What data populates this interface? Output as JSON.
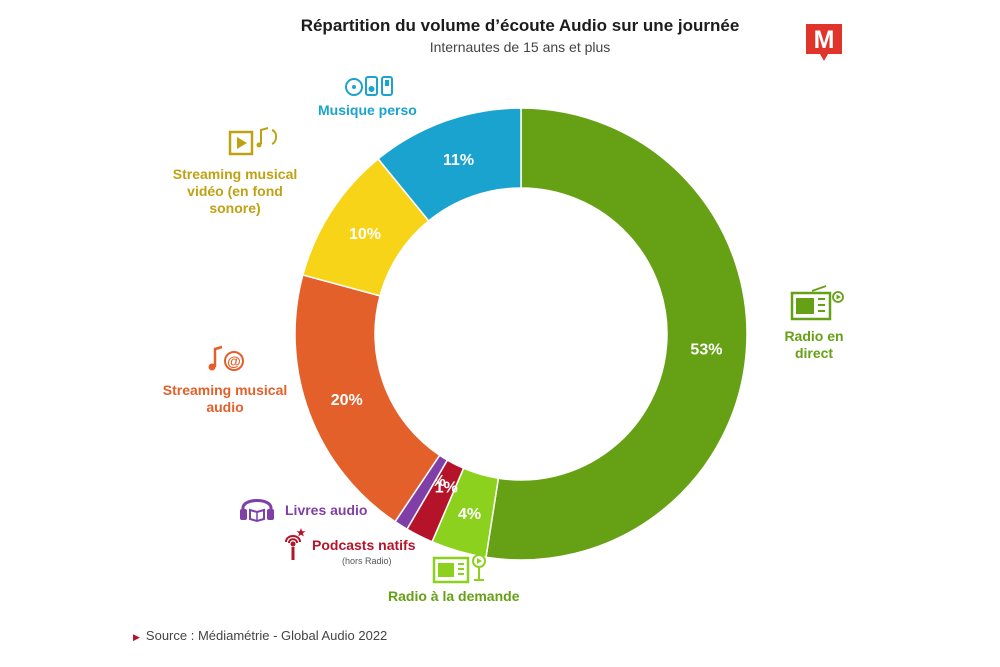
{
  "header": {
    "title": "Répartition du volume d’écoute Audio sur une journée",
    "subtitle": "Internautes de 15 ans et plus"
  },
  "logo": {
    "letter": "M",
    "color": "#e0342b"
  },
  "chart_data": {
    "type": "pie",
    "donut": true,
    "title": "Répartition du volume d’écoute Audio sur une journée",
    "subtitle": "Internautes de 15 ans et plus",
    "unit": "%",
    "slices": [
      {
        "label": "Radio en direct",
        "value": 53,
        "display": "53%",
        "color": "#66a014",
        "icon": "radio-icon"
      },
      {
        "label": "Radio à la demande",
        "value": 4,
        "display": "4%",
        "color": "#8cd11e",
        "icon": "radio-replay-icon"
      },
      {
        "label": "Podcasts natifs",
        "sublabel": "(hors Radio)",
        "value": 2,
        "display": "2%",
        "color": "#b5132a",
        "icon": "podcast-mic-icon"
      },
      {
        "label": "Livres audio",
        "value": 1,
        "display": "1%",
        "color": "#7f3fa6",
        "icon": "headphones-book-icon"
      },
      {
        "label": "Streaming musical audio",
        "value": 20,
        "display": "20%",
        "color": "#e3602a",
        "icon": "music-note-icon"
      },
      {
        "label": "Streaming musical vidéo (en fond sonore)",
        "value": 10,
        "display": "10%",
        "color": "#f7d417",
        "icon": "video-play-icon"
      },
      {
        "label": "Musique perso",
        "value": 11,
        "display": "11%",
        "color": "#1ba3cf",
        "icon": "cd-player-icon"
      }
    ]
  },
  "labels": {
    "radio_direct": "Radio en direct",
    "radio_demande": "Radio à la demande",
    "podcasts": "Podcasts natifs",
    "podcasts_sub": "(hors Radio)",
    "livres": "Livres audio",
    "streaming_audio": "Streaming musical audio",
    "streaming_video": "Streaming musical vidéo (en fond sonore)",
    "musique_perso": "Musique perso"
  },
  "footer": {
    "source": "Source : Médiamétrie - Global Audio 2022"
  }
}
